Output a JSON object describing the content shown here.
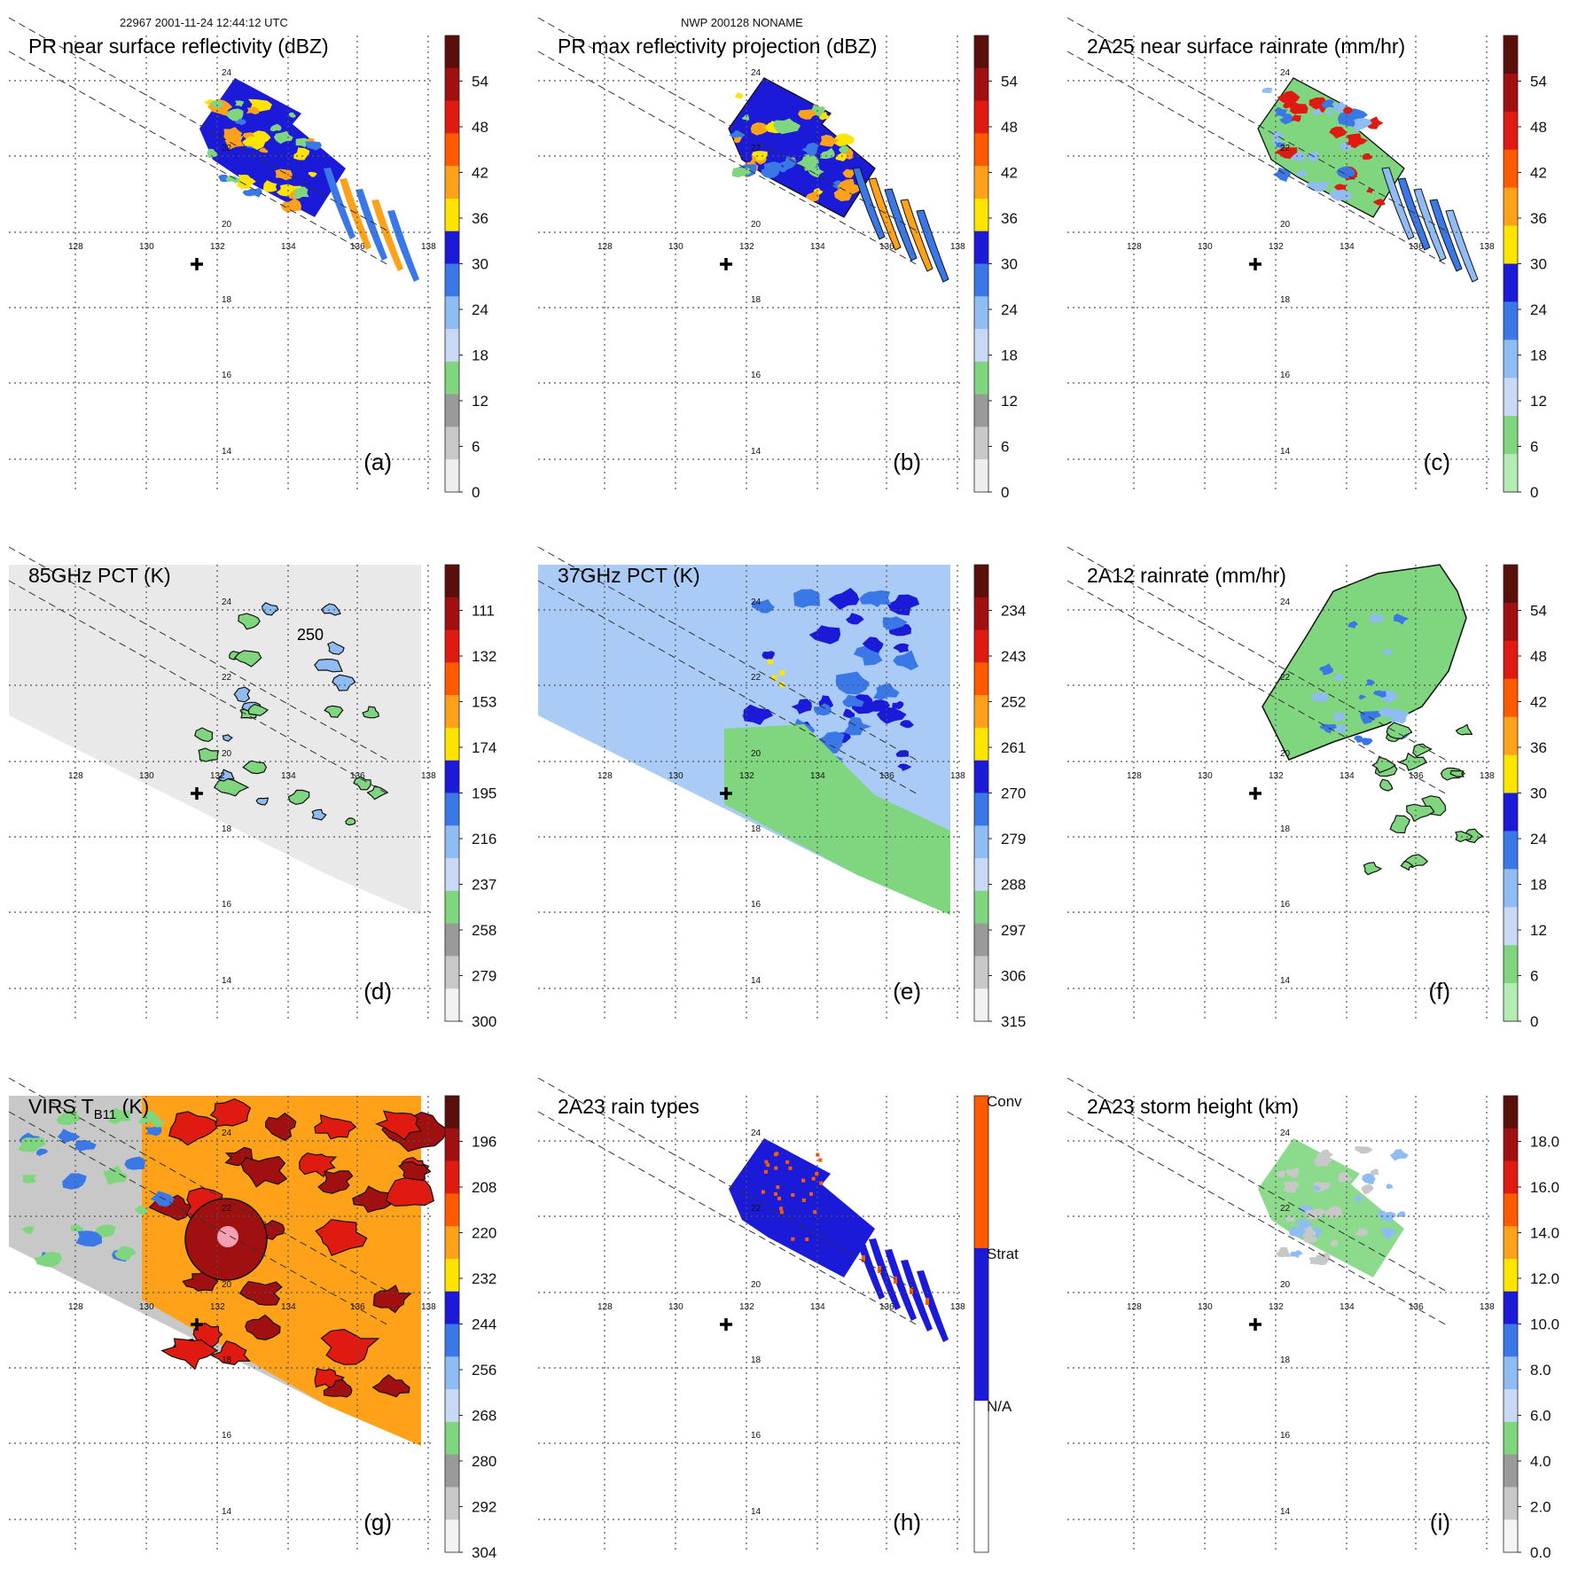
{
  "header": {
    "left": "22967 2001-11-24 12:44:12 UTC",
    "center": "NWP 200128 NONAME"
  },
  "lon_labels": [
    "128",
    "130",
    "132",
    "134",
    "136",
    "138"
  ],
  "lat_labels": [
    "24",
    "22",
    "20",
    "18",
    "16",
    "14"
  ],
  "colors": {
    "gray_light": "#f4f4f4",
    "gray_mid": "#c8c8c8",
    "gray_dark": "#9a9a9a",
    "green": "#7fd67f",
    "blue_pale": "#c9d8f5",
    "blue_light": "#8fbcf2",
    "blue_mid": "#3a78e8",
    "blue_dark": "#1a1ad8",
    "yellow": "#ffe400",
    "orange": "#ffa21a",
    "orange_red": "#ff5a00",
    "red": "#e01a10",
    "dark_red": "#a01010",
    "maroon": "#5a0f0a",
    "brown": "#9a4a20"
  },
  "panels": [
    {
      "id": "a",
      "title": "PR near surface reflectivity (dBZ)",
      "letter": "(a)",
      "colorbar_labels": [
        "54",
        "48",
        "42",
        "36",
        "30",
        "24",
        "18",
        "12",
        "6",
        "0"
      ]
    },
    {
      "id": "b",
      "title": "PR max reflectivity projection (dBZ)",
      "letter": "(b)",
      "colorbar_labels": [
        "54",
        "48",
        "42",
        "36",
        "30",
        "24",
        "18",
        "12",
        "6",
        "0"
      ]
    },
    {
      "id": "c",
      "title": "2A25 near surface rainrate (mm/hr)",
      "letter": "(c)",
      "colorbar_labels": [
        "54",
        "48",
        "42",
        "36",
        "30",
        "24",
        "18",
        "12",
        "6",
        "0"
      ]
    },
    {
      "id": "d",
      "title": "85GHz PCT (K)",
      "letter": "(d)",
      "contour_label": "250",
      "colorbar_labels": [
        "111",
        "132",
        "153",
        "174",
        "195",
        "216",
        "237",
        "258",
        "279",
        "300"
      ]
    },
    {
      "id": "e",
      "title": "37GHz PCT (K)",
      "letter": "(e)",
      "colorbar_labels": [
        "234",
        "243",
        "252",
        "261",
        "270",
        "279",
        "288",
        "297",
        "306",
        "315"
      ]
    },
    {
      "id": "f",
      "title": "2A12 rainrate (mm/hr)",
      "letter": "(f)",
      "colorbar_labels": [
        "54",
        "48",
        "42",
        "36",
        "30",
        "24",
        "18",
        "12",
        "6",
        "0"
      ]
    },
    {
      "id": "g",
      "title": "VIRS T",
      "title_sub": "B11",
      "title_tail": " (K)",
      "letter": "(g)",
      "colorbar_labels": [
        "196",
        "208",
        "220",
        "232",
        "244",
        "256",
        "268",
        "280",
        "292",
        "304"
      ]
    },
    {
      "id": "h",
      "title": "2A23 rain types",
      "letter": "(h)",
      "category_labels": [
        "Conv",
        "Strat",
        "N/A"
      ]
    },
    {
      "id": "i",
      "title": "2A23 storm height (km)",
      "letter": "(i)",
      "colorbar_labels": [
        "18.0",
        "16.0",
        "14.0",
        "12.0",
        "10.0",
        "8.0",
        "6.0",
        "4.0",
        "2.0",
        "0.0"
      ]
    }
  ]
}
